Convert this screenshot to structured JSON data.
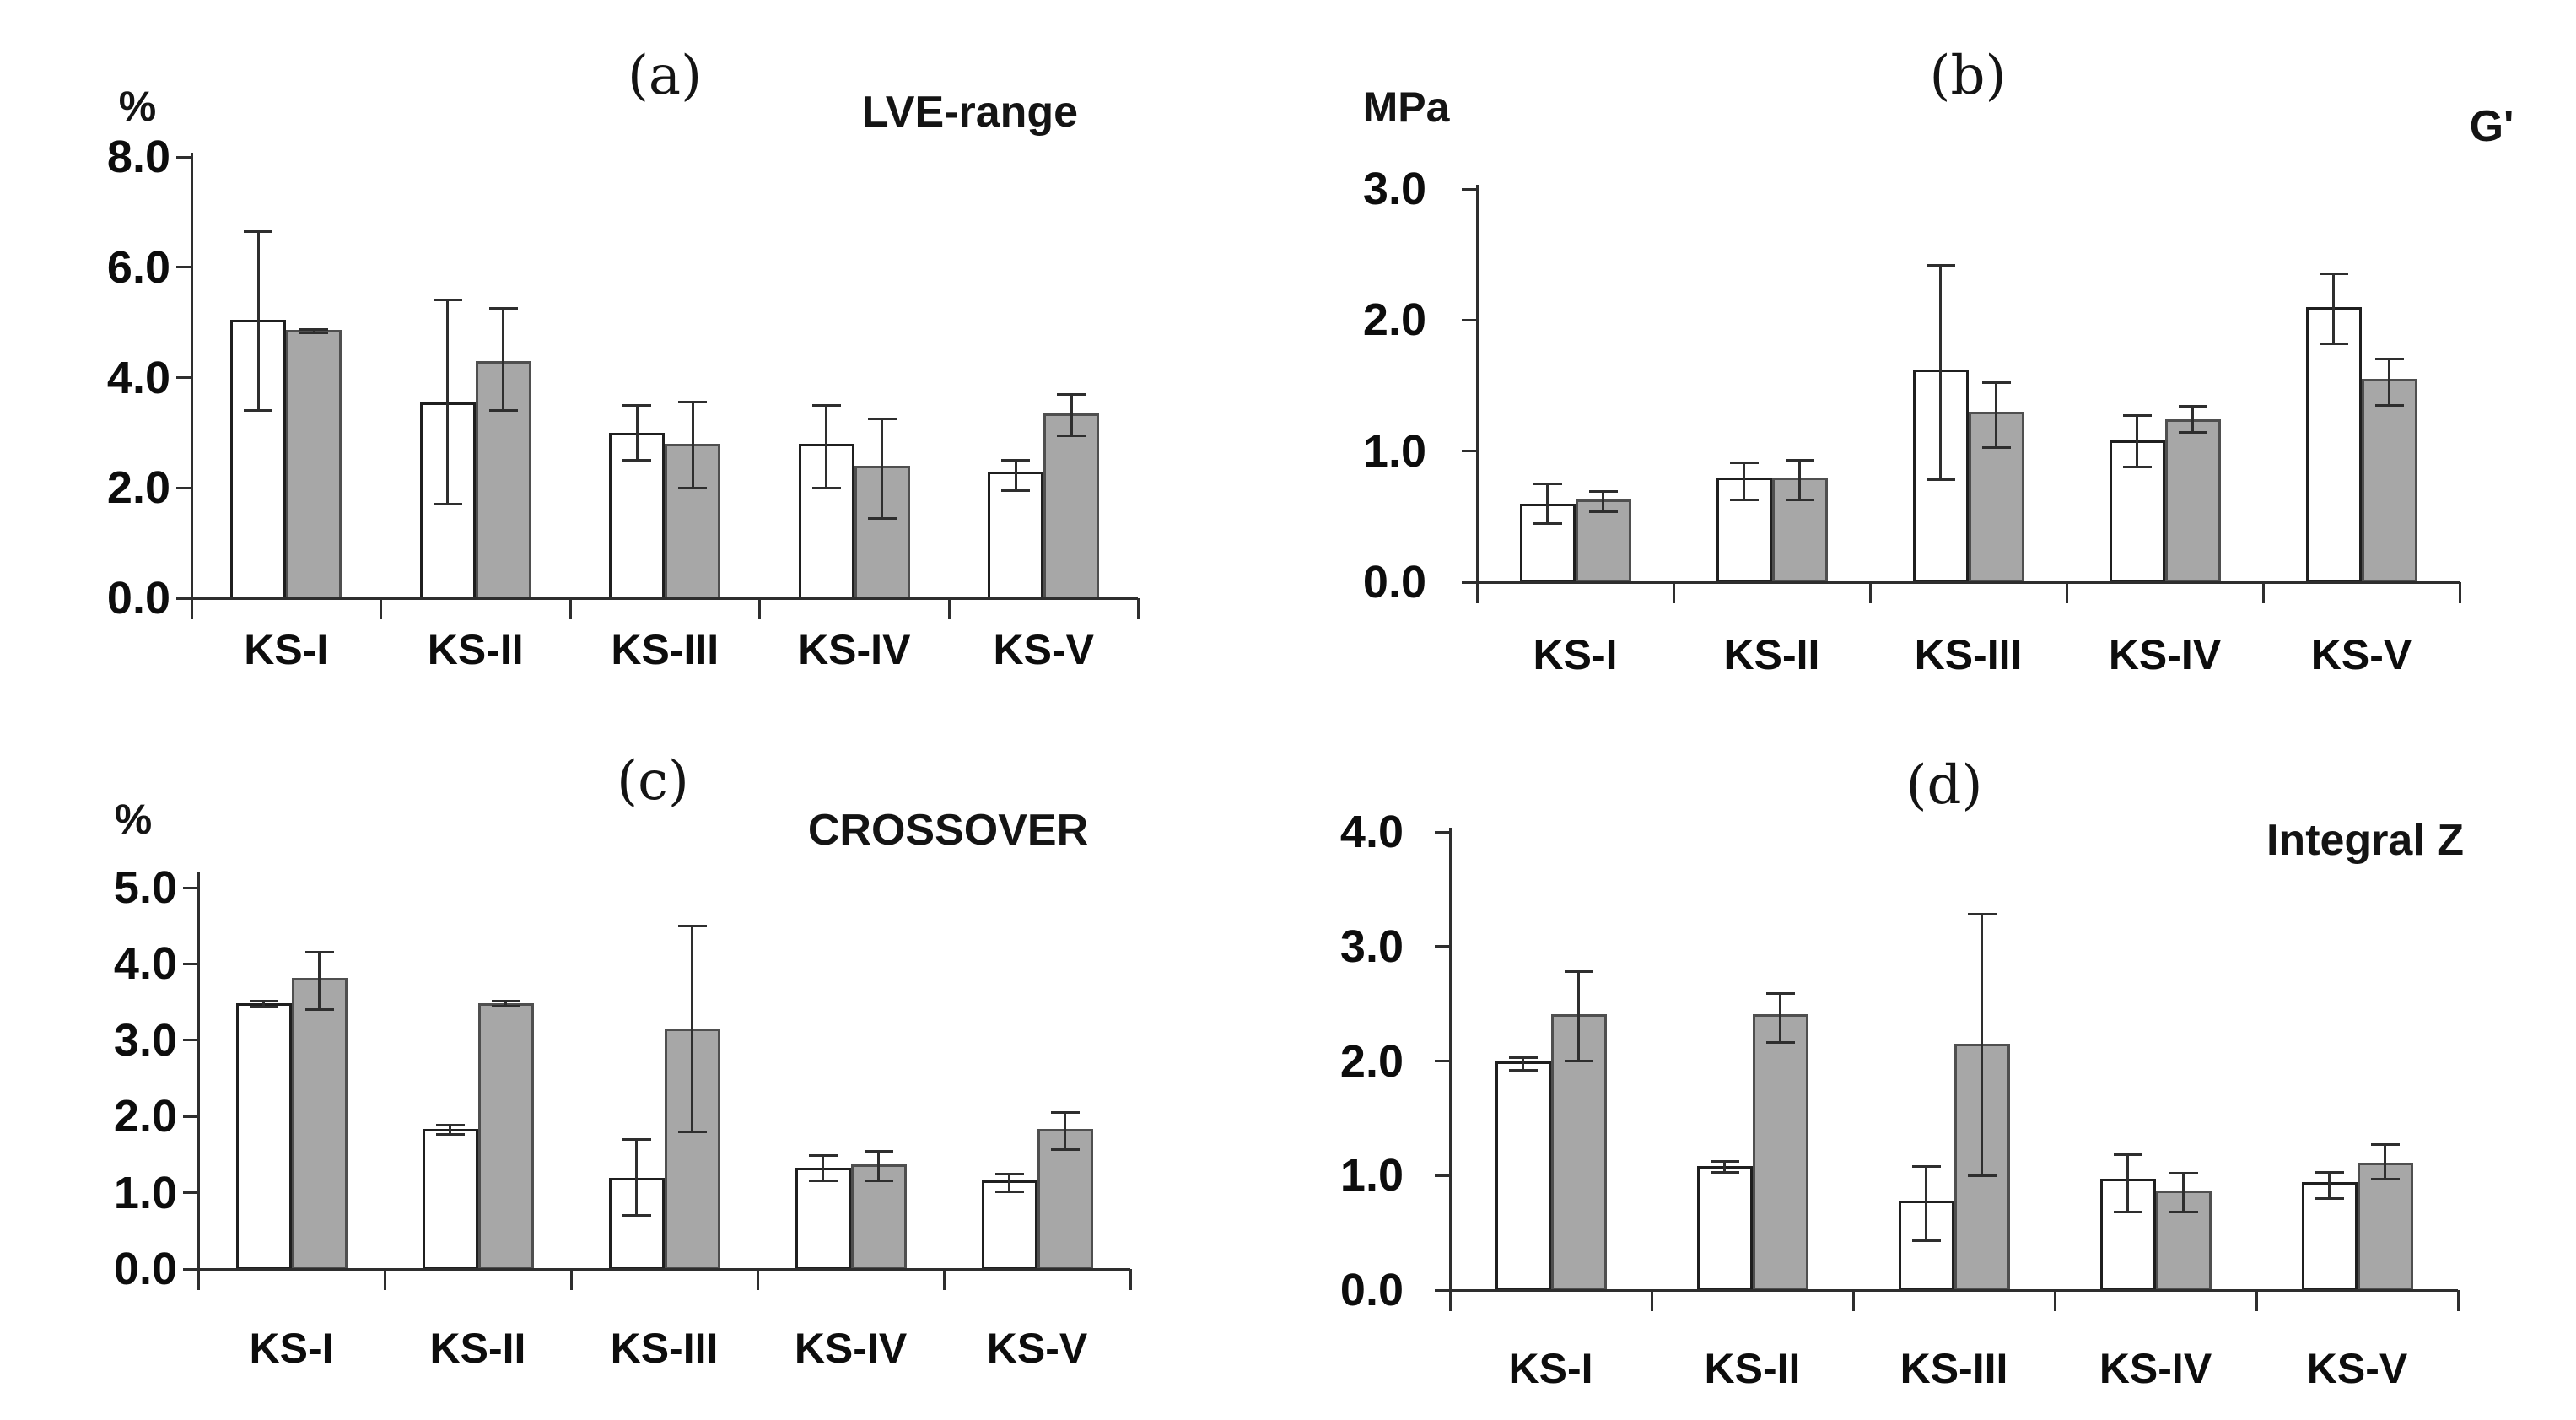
{
  "figure": {
    "description": "Four-panel bar chart figure comparing two unlabeled series (white bars and gray bars) across five samples",
    "categories": [
      "KS-I",
      "KS-II",
      "KS-III",
      "KS-IV",
      "KS-V"
    ]
  },
  "colors": {
    "background": "#ffffff",
    "series_white_fill": "#ffffff",
    "series_white_border": "#1f1f1f",
    "series_gray_fill": "#a7a7a7",
    "series_gray_border": "#4f4f4f",
    "axis": "#2e2e2e",
    "error_bar": "#2e2e2e",
    "text": "#0d0d0d"
  },
  "chart_data": [
    {
      "type": "bar",
      "panel_label": "(a)",
      "title": "LVE-range",
      "unit": "%",
      "ylabel": "%",
      "categories": [
        "KS-I",
        "KS-II",
        "KS-III",
        "KS-IV",
        "KS-V"
      ],
      "ylim": [
        0,
        8
      ],
      "yticks": [
        0,
        2,
        4,
        6,
        8
      ],
      "ytick_labels": [
        "0.0",
        "2.0",
        "4.0",
        "6.0",
        "8.0"
      ],
      "grid": false,
      "legend": "none",
      "series": [
        {
          "name": "series-1-white",
          "fill": "#ffffff",
          "border": "#1f1f1f",
          "values": [
            5.05,
            3.55,
            3.0,
            2.8,
            2.3
          ],
          "err_lo": [
            3.4,
            1.7,
            2.5,
            2.0,
            1.95
          ],
          "err_hi": [
            6.65,
            5.4,
            3.5,
            3.5,
            2.5
          ]
        },
        {
          "name": "series-2-gray",
          "fill": "#a7a7a7",
          "border": "#4f4f4f",
          "values": [
            4.86,
            4.3,
            2.8,
            2.4,
            3.35
          ],
          "err_lo": [
            4.81,
            3.4,
            2.0,
            1.45,
            2.95
          ],
          "err_hi": [
            4.87,
            5.25,
            3.55,
            3.25,
            3.7
          ]
        }
      ]
    },
    {
      "type": "bar",
      "panel_label": "(b)",
      "title": "G'",
      "unit": "MPa",
      "ylabel": "MPa",
      "categories": [
        "KS-I",
        "KS-II",
        "KS-III",
        "KS-IV",
        "KS-V"
      ],
      "ylim": [
        0,
        3
      ],
      "yticks": [
        0,
        1,
        2,
        3
      ],
      "ytick_labels": [
        "0.0",
        "1.0",
        "2.0",
        "3.0"
      ],
      "grid": false,
      "legend": "none",
      "series": [
        {
          "name": "series-1-white",
          "fill": "#ffffff",
          "border": "#1f1f1f",
          "values": [
            0.6,
            0.8,
            1.62,
            1.08,
            2.1
          ],
          "err_lo": [
            0.45,
            0.63,
            0.78,
            0.88,
            1.82
          ],
          "err_hi": [
            0.75,
            0.91,
            2.42,
            1.27,
            2.35
          ]
        },
        {
          "name": "series-2-gray",
          "fill": "#a7a7a7",
          "border": "#4f4f4f",
          "values": [
            0.63,
            0.8,
            1.3,
            1.24,
            1.55
          ],
          "err_lo": [
            0.54,
            0.63,
            1.03,
            1.14,
            1.35
          ],
          "err_hi": [
            0.69,
            0.93,
            1.52,
            1.34,
            1.7
          ]
        }
      ]
    },
    {
      "type": "bar",
      "panel_label": "(c)",
      "title": "CROSSOVER",
      "unit": "%",
      "ylabel": "%",
      "categories": [
        "KS-I",
        "KS-II",
        "KS-III",
        "KS-IV",
        "KS-V"
      ],
      "ylim": [
        0,
        5
      ],
      "yticks": [
        0,
        1,
        2,
        3,
        4,
        5
      ],
      "ytick_labels": [
        "0.0",
        "1.0",
        "2.0",
        "3.0",
        "4.0",
        "5.0"
      ],
      "grid": false,
      "legend": "none",
      "series": [
        {
          "name": "series-1-white",
          "fill": "#ffffff",
          "border": "#1f1f1f",
          "values": [
            3.48,
            1.84,
            1.2,
            1.33,
            1.16
          ],
          "err_lo": [
            3.44,
            1.76,
            0.7,
            1.16,
            1.01
          ],
          "err_hi": [
            3.51,
            1.89,
            1.7,
            1.49,
            1.25
          ]
        },
        {
          "name": "series-2-gray",
          "fill": "#a7a7a7",
          "border": "#4f4f4f",
          "values": [
            3.82,
            3.48,
            3.15,
            1.37,
            1.84
          ],
          "err_lo": [
            3.4,
            3.45,
            1.8,
            1.16,
            1.57
          ],
          "err_hi": [
            4.15,
            3.51,
            4.5,
            1.54,
            2.05
          ]
        }
      ]
    },
    {
      "type": "bar",
      "panel_label": "(d)",
      "title": "Integral Z",
      "unit": "",
      "ylabel": "",
      "categories": [
        "KS-I",
        "KS-II",
        "KS-III",
        "KS-IV",
        "KS-V"
      ],
      "ylim": [
        0,
        4
      ],
      "yticks": [
        0,
        1,
        2,
        3,
        4
      ],
      "ytick_labels": [
        "0.0",
        "1.0",
        "2.0",
        "3.0",
        "4.0"
      ],
      "grid": false,
      "legend": "none",
      "series": [
        {
          "name": "series-1-white",
          "fill": "#ffffff",
          "border": "#1f1f1f",
          "values": [
            2.0,
            1.08,
            0.78,
            0.97,
            0.94
          ],
          "err_lo": [
            1.92,
            1.03,
            0.43,
            0.68,
            0.8
          ],
          "err_hi": [
            2.03,
            1.12,
            1.08,
            1.18,
            1.03
          ]
        },
        {
          "name": "series-2-gray",
          "fill": "#a7a7a7",
          "border": "#4f4f4f",
          "values": [
            2.41,
            2.41,
            2.15,
            0.87,
            1.11
          ],
          "err_lo": [
            2.0,
            2.16,
            1.0,
            0.68,
            0.97
          ],
          "err_hi": [
            2.78,
            2.59,
            3.28,
            1.02,
            1.27
          ]
        }
      ]
    }
  ]
}
